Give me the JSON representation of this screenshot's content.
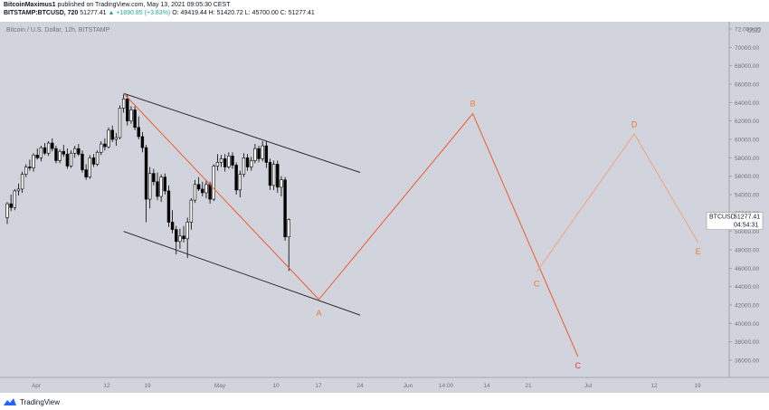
{
  "header": {
    "user": "BitcoinMaximus1",
    "published": "published on TradingView.com, May 13, 2021 09:05:30 CEST",
    "symbol": "BITSTAMP:BTCUSD, 720",
    "last": "51277.41",
    "change": "▲ +1890.85 (+3.83%)",
    "ohlc": "O: 49419.44 H: 51420.72 L: 45700.00 C: 51277.41"
  },
  "footer": {
    "brand": "TradingView"
  },
  "colors": {
    "background": "#d1d4dc",
    "candle_up": "#ffffff",
    "candle_down": "#000000",
    "channel": "#1e1e1e",
    "wave": "#f05a2a",
    "wave_light": "#f4a17d",
    "label": "#f07a2a",
    "label_red": "#e53935",
    "price_tag": "#ffffff"
  },
  "chart_data": {
    "type": "candlestick",
    "title": "Bitcoin / U.S. Dollar, 12h, BITSTAMP",
    "ylabel": "USD",
    "y_ticks": [
      "72.000.00",
      "70000.00",
      "68000.00",
      "66000.00",
      "64000.00",
      "62000.00",
      "60000.00",
      "58000.00",
      "56000.00",
      "54000.00",
      "52000.00",
      "50000.00",
      "48000.00",
      "46000.00",
      "44000.00",
      "42000.00",
      "40000.00",
      "38000.00",
      "36000.00"
    ],
    "x_ticks": [
      "Apr",
      "12",
      "19",
      "May",
      "10",
      "17",
      "24",
      "Jun",
      "14:00",
      "14",
      "21",
      "Jul",
      "12",
      "19"
    ],
    "price_tag": {
      "symbol": "BTCUSD",
      "price": "51277.41",
      "countdown": "04:54:31"
    },
    "candles": [
      {
        "o": 51500,
        "h": 53200,
        "l": 50800,
        "c": 53000
      },
      {
        "o": 53000,
        "h": 54000,
        "l": 52200,
        "c": 52600
      },
      {
        "o": 52600,
        "h": 54600,
        "l": 52300,
        "c": 54400
      },
      {
        "o": 54400,
        "h": 55200,
        "l": 53900,
        "c": 54600
      },
      {
        "o": 54600,
        "h": 56500,
        "l": 54200,
        "c": 56200
      },
      {
        "o": 56200,
        "h": 57300,
        "l": 55900,
        "c": 57000
      },
      {
        "o": 57000,
        "h": 57800,
        "l": 56600,
        "c": 56900
      },
      {
        "o": 56900,
        "h": 58500,
        "l": 56500,
        "c": 58300
      },
      {
        "o": 58300,
        "h": 59000,
        "l": 57800,
        "c": 58000
      },
      {
        "o": 58000,
        "h": 59300,
        "l": 57600,
        "c": 59100
      },
      {
        "o": 59100,
        "h": 59600,
        "l": 58300,
        "c": 58500
      },
      {
        "o": 58500,
        "h": 59800,
        "l": 58200,
        "c": 59600
      },
      {
        "o": 59600,
        "h": 60100,
        "l": 58700,
        "c": 59000
      },
      {
        "o": 59000,
        "h": 59300,
        "l": 57400,
        "c": 57700
      },
      {
        "o": 57700,
        "h": 58900,
        "l": 57400,
        "c": 58700
      },
      {
        "o": 58700,
        "h": 59400,
        "l": 58100,
        "c": 58400
      },
      {
        "o": 58400,
        "h": 59000,
        "l": 56800,
        "c": 57100
      },
      {
        "o": 57100,
        "h": 58800,
        "l": 56900,
        "c": 58500
      },
      {
        "o": 58500,
        "h": 59300,
        "l": 58000,
        "c": 59000
      },
      {
        "o": 59000,
        "h": 59500,
        "l": 58200,
        "c": 58400
      },
      {
        "o": 58400,
        "h": 58800,
        "l": 56400,
        "c": 56700
      },
      {
        "o": 56700,
        "h": 57300,
        "l": 55600,
        "c": 55900
      },
      {
        "o": 55900,
        "h": 58300,
        "l": 55700,
        "c": 58000
      },
      {
        "o": 58000,
        "h": 58400,
        "l": 57000,
        "c": 57300
      },
      {
        "o": 57300,
        "h": 58800,
        "l": 57100,
        "c": 58600
      },
      {
        "o": 58600,
        "h": 59800,
        "l": 58300,
        "c": 59500
      },
      {
        "o": 59500,
        "h": 60100,
        "l": 58800,
        "c": 59200
      },
      {
        "o": 59200,
        "h": 61300,
        "l": 59000,
        "c": 61000
      },
      {
        "o": 61000,
        "h": 61500,
        "l": 59700,
        "c": 60000
      },
      {
        "o": 60000,
        "h": 60700,
        "l": 59300,
        "c": 60200
      },
      {
        "o": 60200,
        "h": 63700,
        "l": 60000,
        "c": 63400
      },
      {
        "o": 63400,
        "h": 64900,
        "l": 62900,
        "c": 64400
      },
      {
        "o": 64400,
        "h": 64900,
        "l": 61500,
        "c": 62000
      },
      {
        "o": 62000,
        "h": 63600,
        "l": 61700,
        "c": 63200
      },
      {
        "o": 63200,
        "h": 63600,
        "l": 61000,
        "c": 61300
      },
      {
        "o": 61300,
        "h": 62500,
        "l": 60000,
        "c": 60300
      },
      {
        "o": 60300,
        "h": 60800,
        "l": 58600,
        "c": 59100
      },
      {
        "o": 59100,
        "h": 59400,
        "l": 51000,
        "c": 53500
      },
      {
        "o": 53500,
        "h": 57000,
        "l": 52500,
        "c": 56300
      },
      {
        "o": 56300,
        "h": 56800,
        "l": 55000,
        "c": 55400
      },
      {
        "o": 55400,
        "h": 56400,
        "l": 53400,
        "c": 53800
      },
      {
        "o": 53800,
        "h": 56200,
        "l": 53200,
        "c": 55900
      },
      {
        "o": 55900,
        "h": 56300,
        "l": 54000,
        "c": 54400
      },
      {
        "o": 54400,
        "h": 55000,
        "l": 50500,
        "c": 51000
      },
      {
        "o": 51000,
        "h": 52300,
        "l": 49800,
        "c": 50200
      },
      {
        "o": 50200,
        "h": 50600,
        "l": 47500,
        "c": 48900
      },
      {
        "o": 48900,
        "h": 50300,
        "l": 48100,
        "c": 49500
      },
      {
        "o": 49500,
        "h": 50600,
        "l": 48800,
        "c": 49200
      },
      {
        "o": 49200,
        "h": 51500,
        "l": 47100,
        "c": 51000
      },
      {
        "o": 51000,
        "h": 53600,
        "l": 50200,
        "c": 53400
      },
      {
        "o": 53400,
        "h": 55600,
        "l": 53100,
        "c": 55100
      },
      {
        "o": 55100,
        "h": 55900,
        "l": 54400,
        "c": 54600
      },
      {
        "o": 54600,
        "h": 55400,
        "l": 53800,
        "c": 54200
      },
      {
        "o": 54200,
        "h": 55600,
        "l": 53600,
        "c": 55100
      },
      {
        "o": 55100,
        "h": 55400,
        "l": 53000,
        "c": 53500
      },
      {
        "o": 53500,
        "h": 57300,
        "l": 53300,
        "c": 57100
      },
      {
        "o": 57100,
        "h": 58400,
        "l": 56600,
        "c": 57500
      },
      {
        "o": 57500,
        "h": 58300,
        "l": 57000,
        "c": 57900
      },
      {
        "o": 57900,
        "h": 58400,
        "l": 56500,
        "c": 57000
      },
      {
        "o": 57000,
        "h": 58600,
        "l": 56800,
        "c": 58200
      },
      {
        "o": 58200,
        "h": 58600,
        "l": 56800,
        "c": 57200
      },
      {
        "o": 57200,
        "h": 57500,
        "l": 54000,
        "c": 54500
      },
      {
        "o": 54500,
        "h": 56600,
        "l": 53700,
        "c": 56200
      },
      {
        "o": 56200,
        "h": 58500,
        "l": 55900,
        "c": 58000
      },
      {
        "o": 58000,
        "h": 58400,
        "l": 56600,
        "c": 57000
      },
      {
        "o": 57000,
        "h": 58100,
        "l": 56600,
        "c": 57700
      },
      {
        "o": 57700,
        "h": 59500,
        "l": 57400,
        "c": 59000
      },
      {
        "o": 59000,
        "h": 59300,
        "l": 57500,
        "c": 57900
      },
      {
        "o": 57900,
        "h": 59800,
        "l": 57600,
        "c": 59300
      },
      {
        "o": 59300,
        "h": 59800,
        "l": 56900,
        "c": 57500
      },
      {
        "o": 57500,
        "h": 57900,
        "l": 54500,
        "c": 55000
      },
      {
        "o": 55000,
        "h": 57700,
        "l": 54500,
        "c": 57300
      },
      {
        "o": 57300,
        "h": 57700,
        "l": 54200,
        "c": 54800
      },
      {
        "o": 54800,
        "h": 56000,
        "l": 53800,
        "c": 55600
      },
      {
        "o": 55600,
        "h": 55900,
        "l": 49000,
        "c": 49400
      },
      {
        "o": 49400,
        "h": 51400,
        "l": 45700,
        "c": 51277
      }
    ],
    "channel_lines": [
      {
        "from": {
          "t": 31,
          "p": 65000
        },
        "to": {
          "t": 94,
          "p": 56400
        }
      },
      {
        "from": {
          "t": 31,
          "p": 50000
        },
        "to": {
          "t": 94,
          "p": 40900
        }
      }
    ],
    "wave_paths": [
      {
        "style": "main",
        "points": [
          {
            "t": 31,
            "p": 65000
          },
          {
            "t": 83,
            "p": 42600
          },
          {
            "t": 124,
            "p": 62800
          },
          {
            "t": 152,
            "p": 36400
          }
        ]
      },
      {
        "style": "light",
        "points": [
          {
            "t": 141,
            "p": 45600
          },
          {
            "t": 167,
            "p": 60600
          },
          {
            "t": 184,
            "p": 48800
          }
        ]
      }
    ],
    "wave_labels": [
      {
        "text": "A",
        "t": 83,
        "p": 41200,
        "style": "orange"
      },
      {
        "text": "B",
        "t": 124,
        "p": 64000,
        "style": "orange"
      },
      {
        "text": "C",
        "t": 141,
        "p": 44400,
        "style": "orange"
      },
      {
        "text": "C",
        "t": 152,
        "p": 35500,
        "style": "red"
      },
      {
        "text": "D",
        "t": 167,
        "p": 61700,
        "style": "orange"
      },
      {
        "text": "E",
        "t": 184,
        "p": 47900,
        "style": "orange"
      }
    ]
  }
}
